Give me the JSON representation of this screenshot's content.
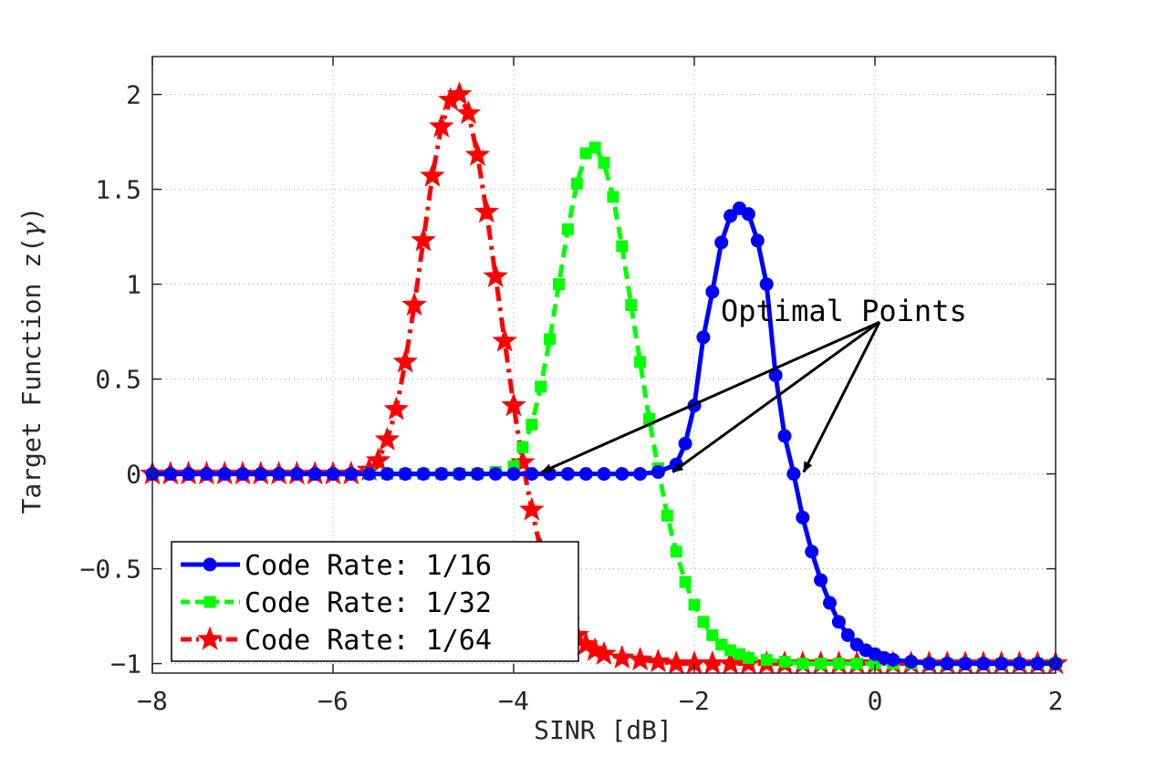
{
  "chart_data": {
    "type": "line",
    "title": "",
    "xlabel": "SINR [dB]",
    "ylabel": "Target Function z(",
    "ylabel_symbol": "γ",
    "ylabel_close": ")",
    "xlim": [
      -8,
      2
    ],
    "ylim": [
      -1.05,
      2.2
    ],
    "xticks": [
      -8,
      -6,
      -4,
      -2,
      0,
      2
    ],
    "xtick_labels": [
      "−8",
      "−6",
      "−4",
      "−2",
      "0",
      "2"
    ],
    "yticks": [
      -1,
      -0.5,
      0,
      0.5,
      1,
      1.5,
      2
    ],
    "ytick_labels": [
      "−1",
      "−0.5",
      "0",
      "0.5",
      "1",
      "1.5",
      "2"
    ],
    "grid": true,
    "legend_position": "bottom-left",
    "annotation": {
      "text": "Optimal Points",
      "arrow_from": [
        0.05,
        0.8
      ],
      "arrow_targets": [
        [
          -3.75,
          0
        ],
        [
          -2.3,
          0
        ],
        [
          -0.85,
          0
        ]
      ]
    },
    "series": [
      {
        "name": "Code Rate: 1/16",
        "color": "#0000ff",
        "line_style": "solid",
        "marker": "circle",
        "peak": 1.4,
        "x_peak": -1.55,
        "sigma": 0.35,
        "x": [
          -8.0,
          -7.8,
          -7.6,
          -7.4,
          -7.2,
          -7.0,
          -6.8,
          -6.6,
          -6.4,
          -6.2,
          -6.0,
          -5.8,
          -5.6,
          -5.4,
          -5.2,
          -5.0,
          -4.8,
          -4.6,
          -4.4,
          -4.2,
          -4.0,
          -3.8,
          -3.6,
          -3.4,
          -3.2,
          -3.0,
          -2.8,
          -2.6,
          -2.4,
          -2.2,
          -2.1,
          -2.0,
          -1.9,
          -1.8,
          -1.7,
          -1.6,
          -1.5,
          -1.4,
          -1.3,
          -1.2,
          -1.1,
          -1.0,
          -0.9,
          -0.8,
          -0.7,
          -0.6,
          -0.5,
          -0.4,
          -0.3,
          -0.2,
          -0.1,
          0.0,
          0.1,
          0.2,
          0.4,
          0.6,
          0.8,
          1.0,
          1.2,
          1.4,
          1.6,
          1.8,
          2.0
        ],
        "values": [
          0,
          0,
          0,
          0,
          0,
          0,
          0,
          0,
          0,
          0,
          0,
          0,
          0,
          0,
          0,
          0,
          0,
          0,
          0,
          0,
          0,
          0,
          0,
          0,
          0,
          0,
          0,
          0,
          0.01,
          0.05,
          0.16,
          0.36,
          0.72,
          0.96,
          1.22,
          1.36,
          1.4,
          1.37,
          1.23,
          1.0,
          0.52,
          0.2,
          0.0,
          -0.23,
          -0.41,
          -0.56,
          -0.68,
          -0.78,
          -0.85,
          -0.9,
          -0.93,
          -0.95,
          -0.97,
          -0.98,
          -0.99,
          -1.0,
          -1.0,
          -1.0,
          -1.0,
          -1.0,
          -1.0,
          -1.0,
          -1.0
        ]
      },
      {
        "name": "Code Rate: 1/32",
        "color": "#00ff00",
        "line_style": "dashed",
        "marker": "square",
        "x": [
          -5.6,
          -5.4,
          -5.2,
          -5.0,
          -4.8,
          -4.6,
          -4.4,
          -4.2,
          -4.0,
          -3.9,
          -3.8,
          -3.7,
          -3.6,
          -3.5,
          -3.4,
          -3.3,
          -3.2,
          -3.1,
          -3.0,
          -2.9,
          -2.8,
          -2.7,
          -2.6,
          -2.5,
          -2.4,
          -2.3,
          -2.2,
          -2.1,
          -2.0,
          -1.9,
          -1.8,
          -1.7,
          -1.6,
          -1.5,
          -1.4,
          -1.2,
          -1.0,
          -0.8,
          -0.6,
          -0.4,
          -0.2,
          0.0,
          0.2,
          0.4,
          0.6,
          0.8,
          1.0,
          1.2,
          1.4,
          1.6,
          1.8,
          2.0
        ],
        "values": [
          0,
          0,
          0,
          0,
          0,
          0,
          0,
          0.01,
          0.04,
          0.14,
          0.26,
          0.46,
          0.71,
          1.0,
          1.29,
          1.53,
          1.69,
          1.72,
          1.64,
          1.46,
          1.2,
          0.89,
          0.59,
          0.29,
          0.03,
          -0.22,
          -0.41,
          -0.57,
          -0.69,
          -0.78,
          -0.85,
          -0.9,
          -0.93,
          -0.95,
          -0.97,
          -0.98,
          -0.99,
          -1.0,
          -1.0,
          -1.0,
          -1.0,
          -1.0,
          -1.0,
          -1.0,
          -1.0,
          -1.0,
          -1.0,
          -1.0,
          -1.0,
          -1.0,
          -1.0,
          -1.0
        ]
      },
      {
        "name": "Code Rate: 1/64",
        "color": "#ff0000",
        "line_style": "dashdot",
        "marker": "star",
        "x": [
          -8.0,
          -7.8,
          -7.6,
          -7.4,
          -7.2,
          -7.0,
          -6.8,
          -6.6,
          -6.4,
          -6.2,
          -6.0,
          -5.8,
          -5.6,
          -5.5,
          -5.4,
          -5.3,
          -5.2,
          -5.1,
          -5.0,
          -4.9,
          -4.8,
          -4.7,
          -4.6,
          -4.5,
          -4.4,
          -4.3,
          -4.2,
          -4.1,
          -4.0,
          -3.9,
          -3.8,
          -3.7,
          -3.6,
          -3.5,
          -3.4,
          -3.3,
          -3.2,
          -3.1,
          -3.0,
          -2.8,
          -2.6,
          -2.4,
          -2.2,
          -2.0,
          -1.8,
          -1.6,
          -1.4,
          -1.2,
          -1.0,
          -0.8,
          -0.6,
          -0.4,
          -0.2,
          0.0,
          0.2,
          0.4,
          0.6,
          0.8,
          1.0,
          1.2,
          1.4,
          1.6,
          1.8,
          2.0
        ],
        "values": [
          0,
          0,
          0,
          0,
          0,
          0,
          0,
          0,
          0,
          0,
          0,
          0.0,
          0.02,
          0.07,
          0.18,
          0.34,
          0.59,
          0.89,
          1.23,
          1.57,
          1.83,
          1.97,
          2.0,
          1.9,
          1.68,
          1.38,
          1.04,
          0.7,
          0.36,
          0.06,
          -0.19,
          -0.4,
          -0.56,
          -0.68,
          -0.78,
          -0.85,
          -0.9,
          -0.93,
          -0.95,
          -0.97,
          -0.98,
          -0.99,
          -1.0,
          -1.0,
          -1.0,
          -1.0,
          -1.0,
          -1.0,
          -1.0,
          -1.0,
          -1.0,
          -1.0,
          -1.0,
          -1.0,
          -1.0,
          -1.0,
          -1.0,
          -1.0,
          -1.0,
          -1.0,
          -1.0,
          -1.0,
          -1.0,
          -1.0
        ]
      }
    ]
  }
}
